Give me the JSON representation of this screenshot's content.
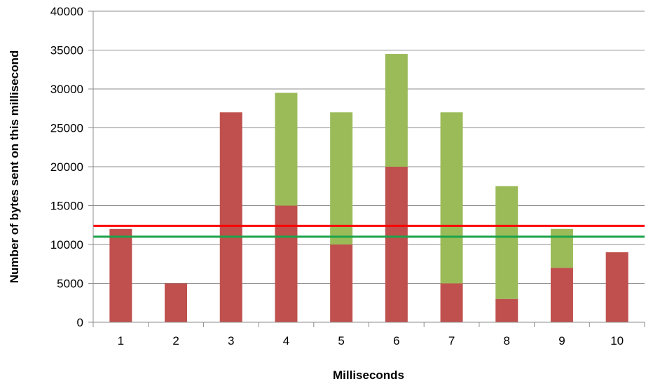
{
  "chart_data": {
    "type": "bar",
    "stacked": true,
    "title": "",
    "xlabel": "Milliseconds",
    "ylabel": "Number of bytes sent on this millisecond",
    "categories": [
      "1",
      "2",
      "3",
      "4",
      "5",
      "6",
      "7",
      "8",
      "9",
      "10"
    ],
    "series": [
      {
        "color": "#c0504d",
        "values": [
          12000,
          5000,
          27000,
          15000,
          10000,
          20000,
          5000,
          3000,
          7000,
          9000
        ]
      },
      {
        "color": "#9bbb59",
        "values": [
          0,
          0,
          0,
          14500,
          17000,
          14500,
          22000,
          14500,
          5000,
          0
        ]
      }
    ],
    "reference_lines": [
      {
        "color": "#ff0000",
        "value": 12400
      },
      {
        "color": "#1aa34a",
        "value": 11000
      }
    ],
    "ylim": [
      0,
      40000
    ],
    "yticks": [
      0,
      5000,
      10000,
      15000,
      20000,
      25000,
      30000,
      35000,
      40000
    ],
    "grid": true,
    "legend": "none"
  }
}
